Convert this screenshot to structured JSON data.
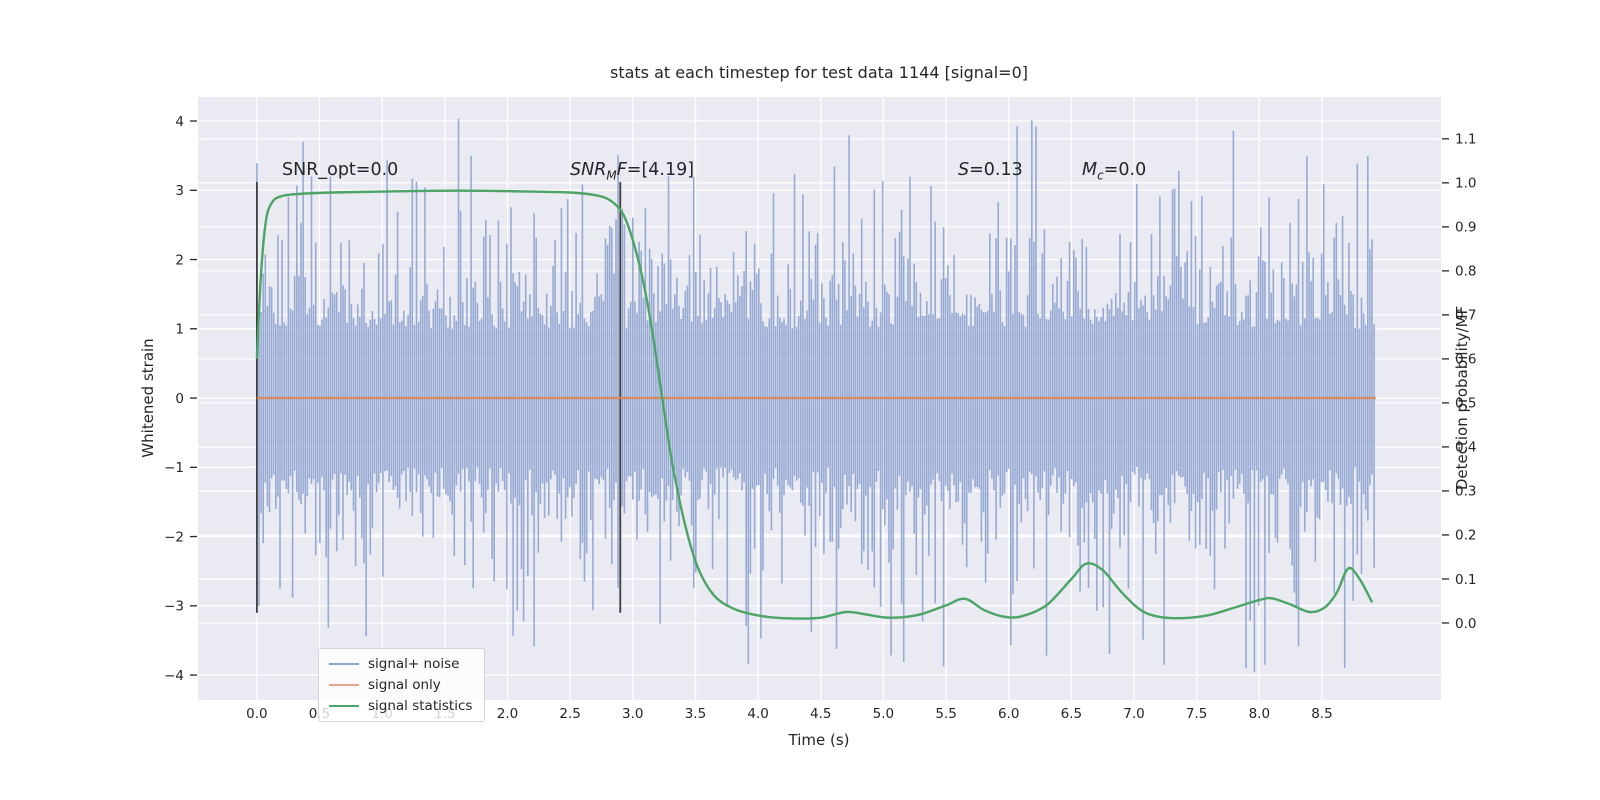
{
  "title": "stats at each timestep for test data 1144 [signal=0]",
  "colors": {
    "figure_bg": "#ffffff",
    "axes_bg": "#eaeaf2",
    "grid": "#ffffff",
    "noise": "#97aad3",
    "signal": "#dd8452",
    "signal_blend": "#e09b7e",
    "stats": "#4ca466",
    "vline": "#3f3f3f",
    "text": "#262626",
    "tick_text": "#262626"
  },
  "annotations": {
    "snr_opt": "SNR_opt=0.0",
    "snr_mf": {
      "pre": "SNR",
      "sub": "M",
      "mid": "F",
      "post": "=[4.19]"
    },
    "s_stat": {
      "main": "S",
      "post": "=0.13"
    },
    "m_c": {
      "main": "M",
      "sub": "c",
      "post": "=0.0"
    }
  },
  "legend": {
    "items": [
      {
        "label": "signal+ noise",
        "color": "#8fa4cf"
      },
      {
        "label": "signal only",
        "color": "#e7a68f"
      },
      {
        "label": "signal statistics",
        "color": "#4ca466"
      }
    ]
  },
  "chart_data": {
    "type": "line",
    "title": "stats at each timestep for test data 1144 [signal=0]",
    "xlabel": "Time (s)",
    "ylabel_left": "Whitened strain",
    "ylabel_right": "Detection probability/MF",
    "xlim": [
      -0.47,
      9.45
    ],
    "ylim_left": [
      -4.36,
      4.347
    ],
    "ylim_right": [
      -0.175,
      1.195
    ],
    "grid": true,
    "legend_position": "lower left",
    "x_ticks": [
      0,
      0.5,
      1,
      1.5,
      2,
      2.5,
      3,
      3.5,
      4,
      4.5,
      5,
      5.5,
      6,
      6.5,
      7,
      7.5,
      8,
      8.5
    ],
    "x_tick_labels": [
      "0.0",
      "0.5",
      "1.0",
      "1.5",
      "2.0",
      "2.5",
      "3.0",
      "3.5",
      "4.0",
      "4.5",
      "5.0",
      "5.5",
      "6.0",
      "6.5",
      "7.0",
      "7.5",
      "8.0",
      "8.5"
    ],
    "y_left_ticks": [
      4,
      3,
      2,
      1,
      0,
      -1,
      -2,
      -3,
      -4
    ],
    "y_left_tick_labels": [
      "4",
      "3",
      "2",
      "1",
      "0",
      "−1",
      "−2",
      "−3",
      "−4"
    ],
    "y_right_ticks": [
      1.1,
      1.0,
      0.9,
      0.8,
      0.7,
      0.6,
      0.5,
      0.4,
      0.3,
      0.2,
      0.1,
      0.0
    ],
    "y_right_tick_labels": [
      "1.1",
      "1.0",
      "0.9",
      "0.8",
      "0.7",
      "0.6",
      "0.5",
      "0.4",
      "0.3",
      "0.2",
      "0.1",
      "0.0"
    ],
    "vlines": [
      {
        "t": 0.0,
        "y_from": -3.1,
        "y_to": 3.12
      },
      {
        "t": 2.9,
        "y_from": -3.1,
        "y_to": 3.12
      }
    ],
    "series": [
      {
        "name": "signal+ noise",
        "kind": "noise_band",
        "axis": "left",
        "t_range": [
          0,
          8.93
        ],
        "mean": 0,
        "std": 1.0,
        "core_envelope": 1.35,
        "hair_envelope": 2.6,
        "spike_max": 4.05,
        "seed": 1144
      },
      {
        "name": "signal only",
        "kind": "constant",
        "axis": "left",
        "value": 0.0,
        "t_range": [
          0,
          8.93
        ]
      },
      {
        "name": "signal statistics",
        "kind": "curve",
        "axis": "right",
        "points": [
          [
            0.0,
            0.6
          ],
          [
            0.03,
            0.78
          ],
          [
            0.07,
            0.91
          ],
          [
            0.12,
            0.955
          ],
          [
            0.2,
            0.97
          ],
          [
            0.35,
            0.975
          ],
          [
            0.6,
            0.978
          ],
          [
            1.0,
            0.98
          ],
          [
            1.4,
            0.982
          ],
          [
            1.8,
            0.982
          ],
          [
            2.2,
            0.98
          ],
          [
            2.5,
            0.978
          ],
          [
            2.7,
            0.972
          ],
          [
            2.82,
            0.96
          ],
          [
            2.92,
            0.93
          ],
          [
            3.0,
            0.87
          ],
          [
            3.08,
            0.78
          ],
          [
            3.16,
            0.655
          ],
          [
            3.24,
            0.5
          ],
          [
            3.32,
            0.355
          ],
          [
            3.42,
            0.22
          ],
          [
            3.52,
            0.125
          ],
          [
            3.65,
            0.062
          ],
          [
            3.8,
            0.033
          ],
          [
            3.95,
            0.02
          ],
          [
            4.1,
            0.013
          ],
          [
            4.3,
            0.01
          ],
          [
            4.5,
            0.012
          ],
          [
            4.7,
            0.025
          ],
          [
            4.85,
            0.02
          ],
          [
            5.0,
            0.013
          ],
          [
            5.15,
            0.013
          ],
          [
            5.3,
            0.02
          ],
          [
            5.5,
            0.04
          ],
          [
            5.65,
            0.055
          ],
          [
            5.8,
            0.03
          ],
          [
            5.95,
            0.015
          ],
          [
            6.1,
            0.015
          ],
          [
            6.3,
            0.04
          ],
          [
            6.5,
            0.1
          ],
          [
            6.62,
            0.135
          ],
          [
            6.75,
            0.12
          ],
          [
            6.9,
            0.07
          ],
          [
            7.05,
            0.03
          ],
          [
            7.2,
            0.014
          ],
          [
            7.4,
            0.011
          ],
          [
            7.6,
            0.018
          ],
          [
            7.8,
            0.035
          ],
          [
            8.0,
            0.052
          ],
          [
            8.1,
            0.056
          ],
          [
            8.25,
            0.042
          ],
          [
            8.4,
            0.025
          ],
          [
            8.52,
            0.035
          ],
          [
            8.62,
            0.07
          ],
          [
            8.71,
            0.124
          ],
          [
            8.8,
            0.1
          ],
          [
            8.9,
            0.047
          ]
        ]
      }
    ]
  }
}
